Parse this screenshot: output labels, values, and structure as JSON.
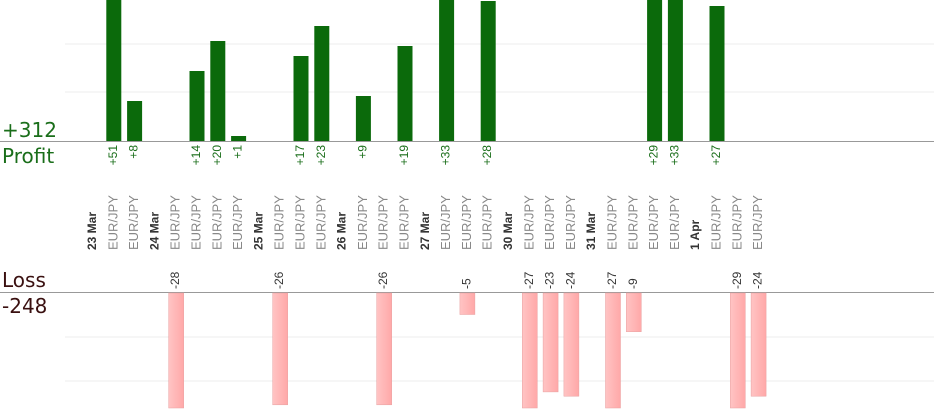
{
  "summary": {
    "profit_total": "+312",
    "profit_label": "Profit",
    "loss_label": "Loss",
    "loss_total": "-248"
  },
  "colors": {
    "profit_bar": "#0b6a0b",
    "loss_bar": "#ffb3b3",
    "profit_text": "#1a6e1a",
    "label_text": "#888888"
  },
  "chart_data": {
    "type": "bar",
    "y_clip_max": 28,
    "days": [
      {
        "label": "23 Mar",
        "trades": [
          {
            "pair": "EUR/JPY",
            "value": 51,
            "text": "+51"
          },
          {
            "pair": "EUR/JPY",
            "value": 8,
            "text": "+8"
          }
        ]
      },
      {
        "label": "24 Mar",
        "trades": [
          {
            "pair": "EUR/JPY",
            "value": -28,
            "text": "-28"
          },
          {
            "pair": "EUR/JPY",
            "value": 14,
            "text": "+14"
          },
          {
            "pair": "EUR/JPY",
            "value": 20,
            "text": "+20"
          },
          {
            "pair": "EUR/JPY",
            "value": 1,
            "text": "+1"
          }
        ]
      },
      {
        "label": "25 Mar",
        "trades": [
          {
            "pair": "EUR/JPY",
            "value": -26,
            "text": "-26"
          },
          {
            "pair": "EUR/JPY",
            "value": 17,
            "text": "+17"
          },
          {
            "pair": "EUR/JPY",
            "value": 23,
            "text": "+23"
          }
        ]
      },
      {
        "label": "26 Mar",
        "trades": [
          {
            "pair": "EUR/JPY",
            "value": 9,
            "text": "+9"
          },
          {
            "pair": "EUR/JPY",
            "value": -26,
            "text": "-26"
          },
          {
            "pair": "EUR/JPY",
            "value": 19,
            "text": "+19"
          }
        ]
      },
      {
        "label": "27 Mar",
        "trades": [
          {
            "pair": "EUR/JPY",
            "value": 33,
            "text": "+33"
          },
          {
            "pair": "EUR/JPY",
            "value": -5,
            "text": "-5"
          },
          {
            "pair": "EUR/JPY",
            "value": 28,
            "text": "+28"
          }
        ]
      },
      {
        "label": "30 Mar",
        "trades": [
          {
            "pair": "EUR/JPY",
            "value": -27,
            "text": "-27"
          },
          {
            "pair": "EUR/JPY",
            "value": -23,
            "text": "-23"
          },
          {
            "pair": "EUR/JPY",
            "value": -24,
            "text": "-24"
          }
        ]
      },
      {
        "label": "31 Mar",
        "trades": [
          {
            "pair": "EUR/JPY",
            "value": -27,
            "text": "-27"
          },
          {
            "pair": "EUR/JPY",
            "value": -9,
            "text": "-9"
          },
          {
            "pair": "EUR/JPY",
            "value": 29,
            "text": "+29"
          },
          {
            "pair": "EUR/JPY",
            "value": 33,
            "text": "+33"
          }
        ]
      },
      {
        "label": "1 Apr",
        "trades": [
          {
            "pair": "EUR/JPY",
            "value": 27,
            "text": "+27"
          },
          {
            "pair": "EUR/JPY",
            "value": -29,
            "text": "-29"
          },
          {
            "pair": "EUR/JPY",
            "value": -24,
            "text": "-24"
          }
        ]
      }
    ]
  }
}
